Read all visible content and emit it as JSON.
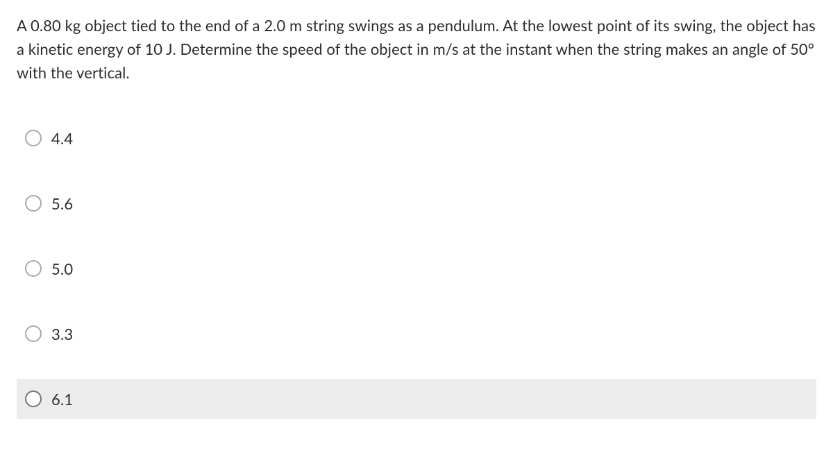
{
  "question": {
    "text": "A 0.80 kg object tied to the end of a 2.0 m string swings as a pendulum. At the lowest point of its swing, the object has a kinetic energy of 10 J. Determine the speed of the object in m/s at the instant when the string makes an angle of 50° with the vertical."
  },
  "options": [
    {
      "label": "4.4",
      "highlighted": false
    },
    {
      "label": "5.6",
      "highlighted": false
    },
    {
      "label": "5.0",
      "highlighted": false
    },
    {
      "label": "3.3",
      "highlighted": false
    },
    {
      "label": "6.1",
      "highlighted": true
    }
  ],
  "colors": {
    "text": "#2d2d2d",
    "background": "#ffffff",
    "highlight_bg": "#ececec",
    "radio_border": "#a8a8a8",
    "radio_border_hover": "#757575"
  }
}
